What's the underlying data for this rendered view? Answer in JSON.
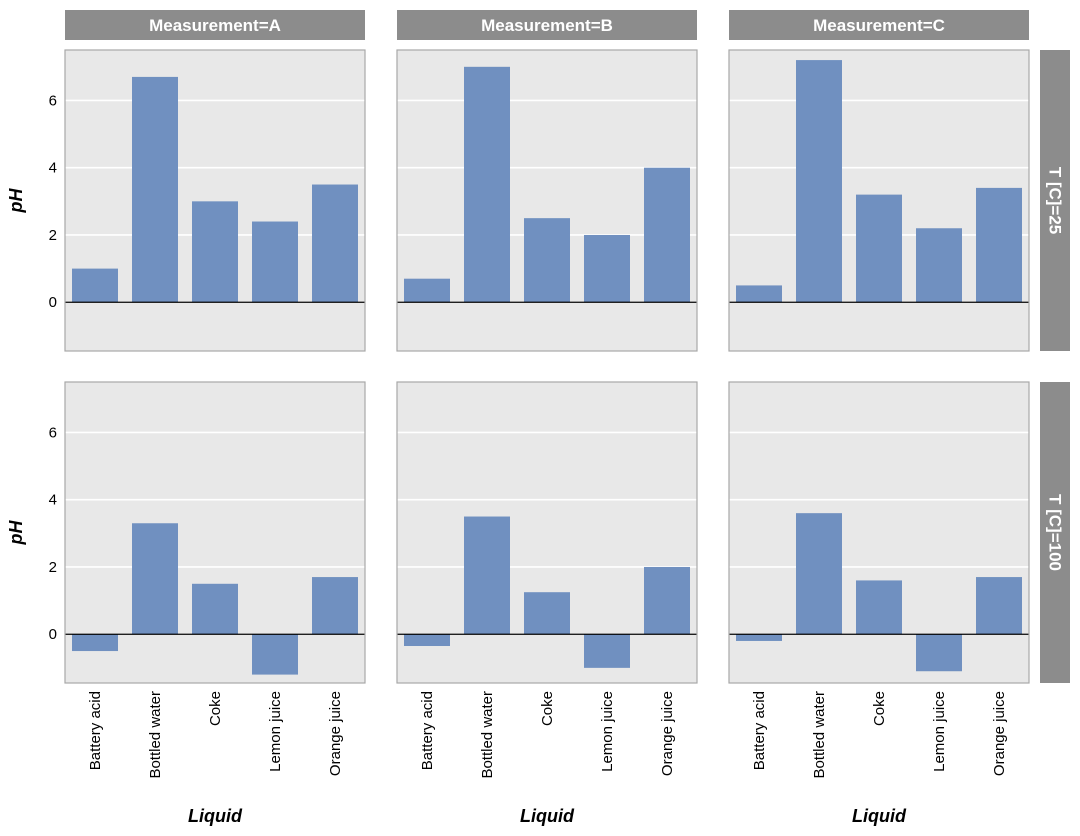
{
  "chart_data": {
    "type": "bar",
    "layout": "facet-grid",
    "categories": [
      "Battery acid",
      "Bottled water",
      "Coke",
      "Lemon juice",
      "Orange juice"
    ],
    "xlabel": "Liquid",
    "ylabel": "pH",
    "ylim": [
      -1.45,
      7.5
    ],
    "yticks": [
      0,
      2,
      4,
      6
    ],
    "bar_color": "#7090c0",
    "zero_line": true,
    "column_facet": {
      "name": "Measurement",
      "strips": [
        "Measurement=A",
        "Measurement=B",
        "Measurement=C"
      ]
    },
    "row_facet": {
      "name": "T [C]",
      "strips": [
        "T [C]=25",
        "T [C]=100"
      ]
    },
    "panels": [
      {
        "row": 0,
        "col": 0,
        "values": [
          1.0,
          6.7,
          3.0,
          2.4,
          3.5
        ]
      },
      {
        "row": 0,
        "col": 1,
        "values": [
          0.7,
          7.0,
          2.5,
          2.0,
          4.0
        ]
      },
      {
        "row": 0,
        "col": 2,
        "values": [
          0.5,
          7.2,
          3.2,
          2.2,
          3.4
        ]
      },
      {
        "row": 1,
        "col": 0,
        "values": [
          -0.5,
          3.3,
          1.5,
          -1.2,
          1.7
        ]
      },
      {
        "row": 1,
        "col": 1,
        "values": [
          -0.35,
          3.5,
          1.25,
          -1.0,
          2.0
        ]
      },
      {
        "row": 1,
        "col": 2,
        "values": [
          -0.2,
          3.6,
          1.6,
          -1.1,
          1.7
        ]
      }
    ]
  }
}
